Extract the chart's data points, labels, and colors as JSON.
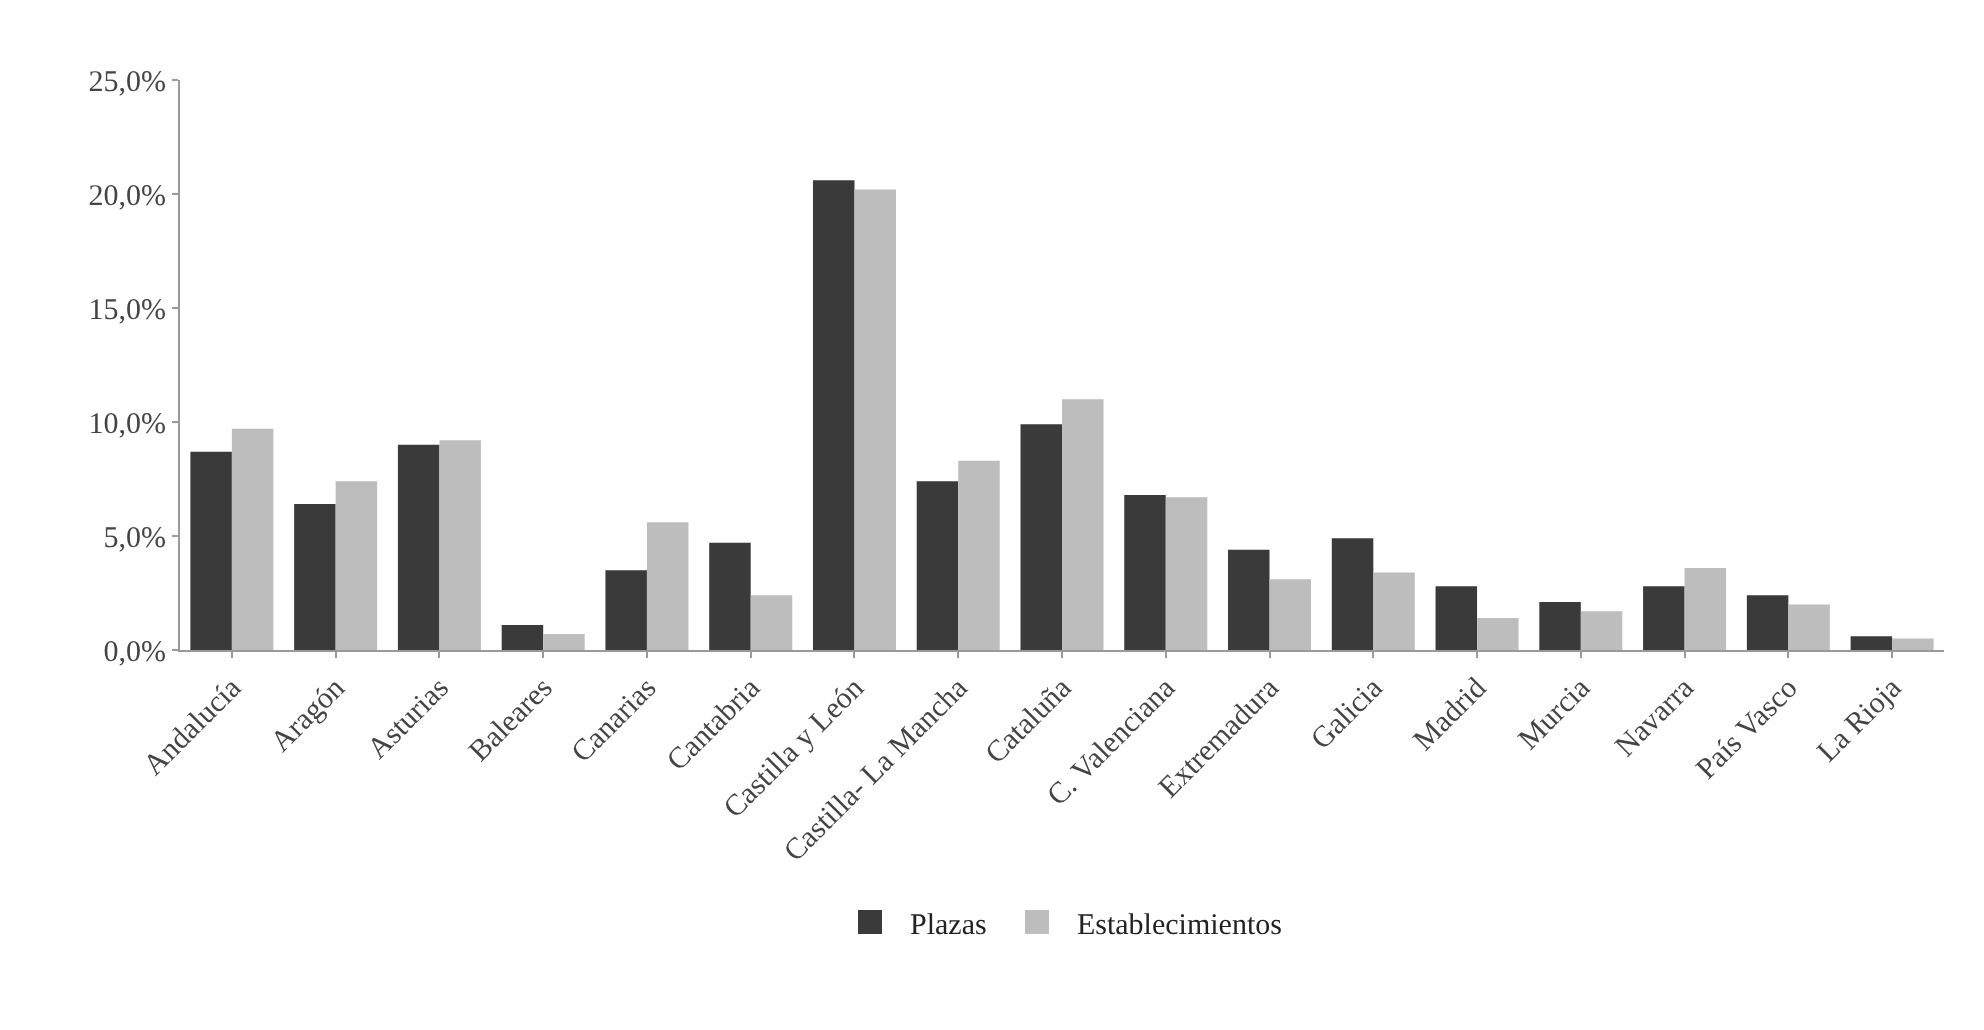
{
  "chart_data": {
    "type": "bar",
    "categories": [
      "Andalucía",
      "Aragón",
      "Asturias",
      "Baleares",
      "Canarias",
      "Cantabria",
      "Castilla y León",
      "Castilla- La Mancha",
      "Cataluña",
      "C. Valenciana",
      "Extremadura",
      "Galicia",
      "Madrid",
      "Murcia",
      "Navarra",
      "País Vasco",
      "La Rioja"
    ],
    "series": [
      {
        "name": "Plazas",
        "color": "#3a3a3a",
        "values": [
          8.7,
          6.4,
          9.0,
          1.1,
          3.5,
          4.7,
          20.6,
          7.4,
          9.9,
          6.8,
          4.4,
          4.9,
          2.8,
          2.1,
          2.8,
          2.4,
          0.6
        ]
      },
      {
        "name": "Establecimientos",
        "color": "#bdbdbd",
        "values": [
          9.7,
          7.4,
          9.2,
          0.7,
          5.6,
          2.4,
          20.2,
          8.3,
          11.0,
          6.7,
          3.1,
          3.4,
          1.4,
          1.7,
          3.6,
          2.0,
          0.5
        ]
      }
    ],
    "ylim": [
      0,
      25
    ],
    "yticks": [
      {
        "value": 0,
        "label": "0,0%"
      },
      {
        "value": 5,
        "label": "5,0%"
      },
      {
        "value": 10,
        "label": "10,0%"
      },
      {
        "value": 15,
        "label": "15,0%"
      },
      {
        "value": 20,
        "label": "20,0%"
      },
      {
        "value": 25,
        "label": "25,0%"
      }
    ],
    "grid": false,
    "legend": "bottom"
  }
}
